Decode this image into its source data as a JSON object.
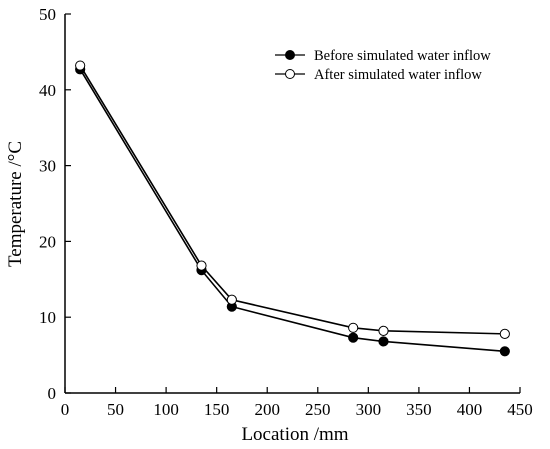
{
  "chart_data": {
    "type": "line",
    "xlabel": "Location /mm",
    "ylabel": "Temperature /°C",
    "xlim": [
      0,
      450
    ],
    "ylim": [
      0,
      50
    ],
    "xticks": [
      0,
      50,
      100,
      150,
      200,
      250,
      300,
      350,
      400,
      450
    ],
    "yticks": [
      0,
      10,
      20,
      30,
      40,
      50
    ],
    "xtick_labels": [
      "0",
      "50",
      "100",
      "150",
      "200",
      "250",
      "300",
      "350",
      "400",
      "450"
    ],
    "ytick_labels": [
      "0",
      "10",
      "20",
      "30",
      "40",
      "50"
    ],
    "grid": false,
    "legend_position": "top-right",
    "series": [
      {
        "name": "Before simulated water inflow",
        "marker": "filled-circle",
        "color": "#000000",
        "x": [
          15,
          135,
          165,
          285,
          315,
          435
        ],
        "y": [
          42.7,
          16.2,
          11.4,
          7.3,
          6.8,
          5.5
        ]
      },
      {
        "name": "After simulated water inflow",
        "marker": "open-circle",
        "color": "#000000",
        "x": [
          15,
          135,
          165,
          285,
          315,
          435
        ],
        "y": [
          43.2,
          16.8,
          12.3,
          8.6,
          8.2,
          7.8
        ]
      }
    ]
  }
}
